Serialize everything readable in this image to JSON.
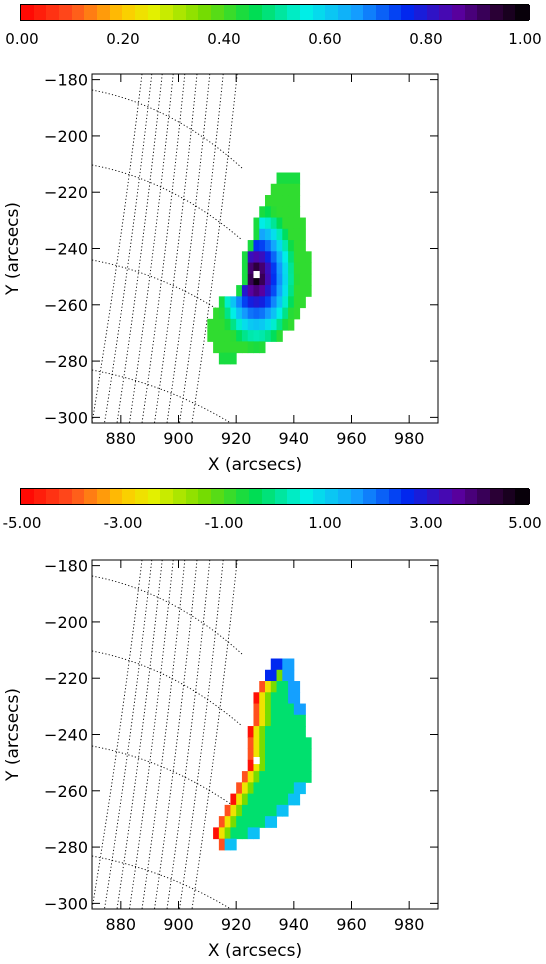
{
  "colorbar_top": {
    "ticks": [
      "0.00",
      "0.20",
      "0.40",
      "0.60",
      "0.80",
      "1.00"
    ],
    "range": [
      0,
      1
    ]
  },
  "colorbar_bottom": {
    "ticks": [
      "-5.00",
      "-3.00",
      "-1.00",
      "1.00",
      "3.00",
      "5.00"
    ],
    "range": [
      -5,
      5
    ]
  },
  "chart_data": [
    {
      "type": "heatmap",
      "title": "",
      "xlabel": "X (arcsecs)",
      "ylabel": "Y (arcsecs)",
      "xlim": [
        870,
        990
      ],
      "ylim": [
        -302,
        -178
      ],
      "xticks": [
        "880",
        "900",
        "920",
        "940",
        "960",
        "980"
      ],
      "yticks": [
        "-180",
        "-200",
        "-220",
        "-240",
        "-260",
        "-280",
        "-300"
      ],
      "colorbar_range": [
        0,
        1
      ],
      "description_values": "normalized intensity peaking near (927,-249)",
      "pixel_size_arcsec": 2.0,
      "region_rows": [
        {
          "y": -215,
          "x_start": 934,
          "x_end": 942
        },
        {
          "y": -219,
          "x_start": 932,
          "x_end": 942
        },
        {
          "y": -223,
          "x_start": 930,
          "x_end": 942
        },
        {
          "y": -227,
          "x_start": 928,
          "x_end": 942
        },
        {
          "y": -231,
          "x_start": 926,
          "x_end": 944
        },
        {
          "y": -235,
          "x_start": 926,
          "x_end": 944
        },
        {
          "y": -239,
          "x_start": 924,
          "x_end": 944
        },
        {
          "y": -243,
          "x_start": 922,
          "x_end": 946
        },
        {
          "y": -247,
          "x_start": 922,
          "x_end": 946
        },
        {
          "y": -251,
          "x_start": 922,
          "x_end": 946
        },
        {
          "y": -255,
          "x_start": 920,
          "x_end": 946
        },
        {
          "y": -259,
          "x_start": 914,
          "x_end": 944
        },
        {
          "y": -263,
          "x_start": 912,
          "x_end": 942
        },
        {
          "y": -267,
          "x_start": 910,
          "x_end": 940
        },
        {
          "y": -271,
          "x_start": 910,
          "x_end": 936
        },
        {
          "y": -275,
          "x_start": 912,
          "x_end": 930
        },
        {
          "y": -279,
          "x_start": 914,
          "x_end": 920
        }
      ],
      "peak": {
        "x": 927,
        "y": -249,
        "value": 1.0
      }
    },
    {
      "type": "heatmap",
      "title": "",
      "xlabel": "X (arcsecs)",
      "ylabel": "Y (arcsecs)",
      "xlim": [
        870,
        990
      ],
      "ylim": [
        -302,
        -178
      ],
      "xticks": [
        "880",
        "900",
        "920",
        "940",
        "960",
        "980"
      ],
      "yticks": [
        "-180",
        "-200",
        "-220",
        "-240",
        "-260",
        "-280",
        "-300"
      ],
      "colorbar_range": [
        -5,
        5
      ],
      "description_values": "values mostly near 0, negative (red/orange) along left edge, positive (blue) at top-right edge",
      "region_rows": [
        {
          "y": -215,
          "x_start": 932,
          "x_end": 940
        },
        {
          "y": -219,
          "x_start": 930,
          "x_end": 940
        },
        {
          "y": -223,
          "x_start": 928,
          "x_end": 942
        },
        {
          "y": -227,
          "x_start": 926,
          "x_end": 942
        },
        {
          "y": -231,
          "x_start": 926,
          "x_end": 944
        },
        {
          "y": -235,
          "x_start": 926,
          "x_end": 944
        },
        {
          "y": -239,
          "x_start": 924,
          "x_end": 944
        },
        {
          "y": -243,
          "x_start": 924,
          "x_end": 946
        },
        {
          "y": -247,
          "x_start": 924,
          "x_end": 946
        },
        {
          "y": -251,
          "x_start": 924,
          "x_end": 946
        },
        {
          "y": -255,
          "x_start": 922,
          "x_end": 946
        },
        {
          "y": -259,
          "x_start": 920,
          "x_end": 944
        },
        {
          "y": -263,
          "x_start": 918,
          "x_end": 942
        },
        {
          "y": -267,
          "x_start": 916,
          "x_end": 938
        },
        {
          "y": -271,
          "x_start": 914,
          "x_end": 934
        },
        {
          "y": -275,
          "x_start": 912,
          "x_end": 928
        },
        {
          "y": -279,
          "x_start": 914,
          "x_end": 920
        }
      ]
    }
  ]
}
